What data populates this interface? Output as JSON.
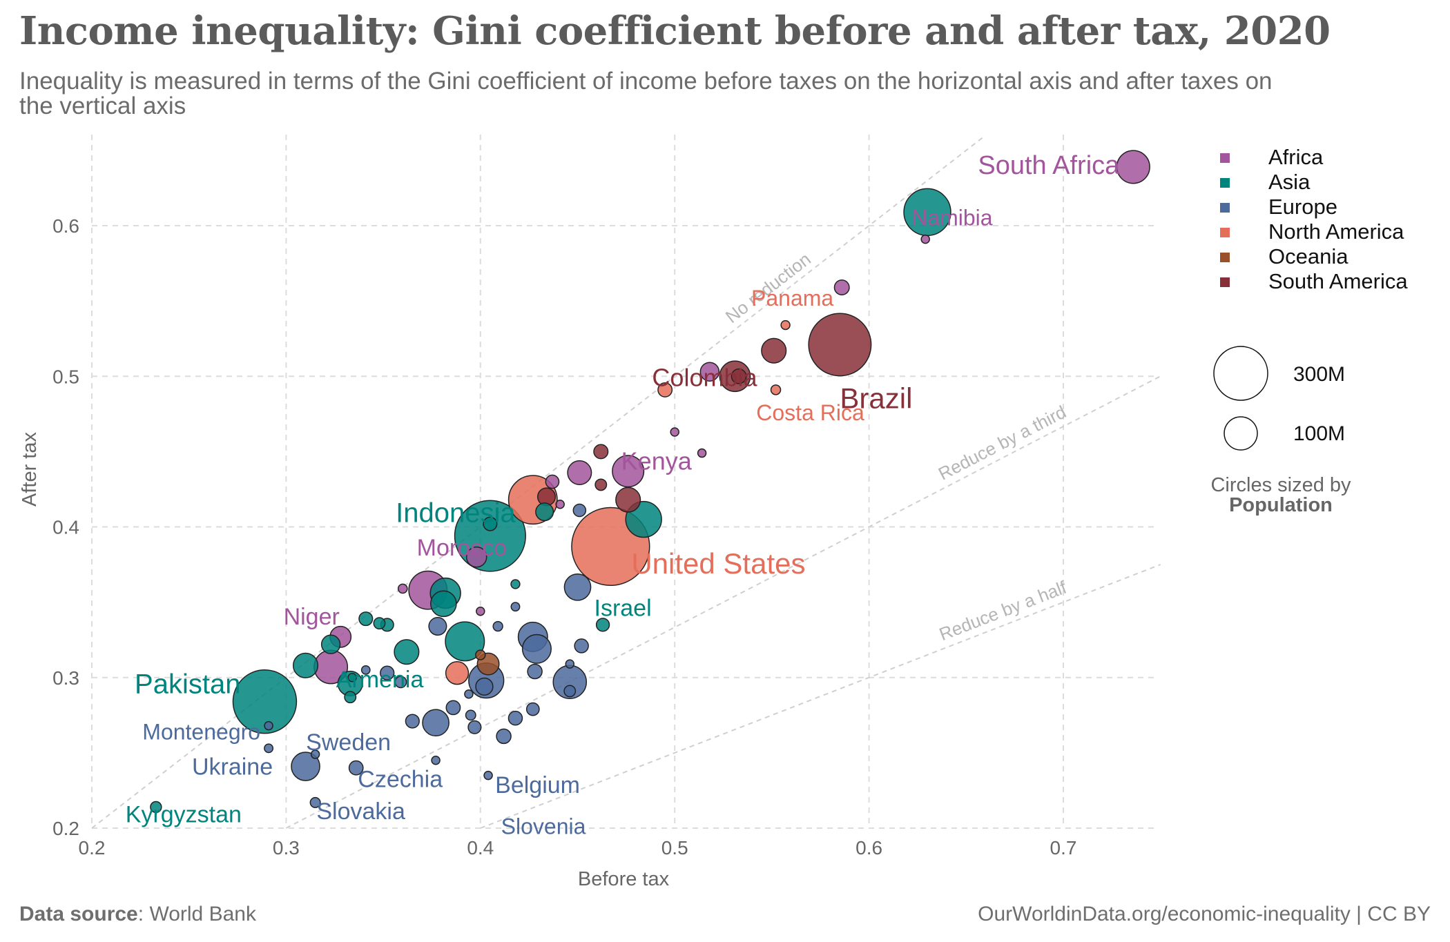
{
  "title": "Income inequality: Gini coefficient before and after tax, 2020",
  "subtitle": "Inequality is measured in terms of the Gini coefficient of income before taxes on the horizontal axis and after taxes on the vertical axis",
  "footer": {
    "source_label": "Data source",
    "source_sep": ":",
    "source_value": "World Bank",
    "credit": "OurWorldinData.org/economic-inequality | CC BY"
  },
  "colors": {
    "Africa": "#a2559c",
    "Asia": "#00847e",
    "Europe": "#4c6a9c",
    "North America": "#e56e5a",
    "Oceania": "#9a5129",
    "South America": "#883039"
  },
  "chart_data": {
    "type": "scatter",
    "xlabel": "Before tax",
    "ylabel": "After tax",
    "xlim": [
      0.2,
      0.75
    ],
    "ylim": [
      0.2,
      0.66
    ],
    "xticks": [
      0.2,
      0.3,
      0.4,
      0.5,
      0.6,
      0.7
    ],
    "yticks": [
      0.2,
      0.3,
      0.4,
      0.5,
      0.6
    ],
    "grid": true,
    "legend_position": "right",
    "legend": [
      "Africa",
      "Asia",
      "Europe",
      "North America",
      "Oceania",
      "South America"
    ],
    "size_legend": {
      "entries": [
        {
          "label": "300M",
          "value": 300
        },
        {
          "label": "100M",
          "value": 100
        }
      ],
      "caption": "Circles sized by",
      "caption_bold": "Population"
    },
    "reference_lines": [
      {
        "label": "No reduction",
        "factor": 1.0
      },
      {
        "label": "Reduce by a third",
        "factor": 0.6667
      },
      {
        "label": "Reduce by a half",
        "factor": 0.5
      }
    ],
    "points": [
      {
        "x": 0.736,
        "y": 0.639,
        "region": "Africa",
        "pop": 59,
        "label": "South Africa"
      },
      {
        "x": 0.63,
        "y": 0.609,
        "region": "Asia",
        "pop": 120
      },
      {
        "x": 0.629,
        "y": 0.591,
        "region": "Africa",
        "pop": 2.5,
        "label": "Namibia"
      },
      {
        "x": 0.586,
        "y": 0.559,
        "region": "Africa",
        "pop": 12
      },
      {
        "x": 0.557,
        "y": 0.534,
        "region": "North America",
        "pop": 4.3,
        "label": "Panama"
      },
      {
        "x": 0.585,
        "y": 0.521,
        "region": "South America",
        "pop": 213,
        "label": "Brazil"
      },
      {
        "x": 0.551,
        "y": 0.517,
        "region": "South America",
        "pop": 33
      },
      {
        "x": 0.518,
        "y": 0.503,
        "region": "Africa",
        "pop": 19
      },
      {
        "x": 0.533,
        "y": 0.5,
        "region": "South America",
        "pop": 11.7
      },
      {
        "x": 0.531,
        "y": 0.5,
        "region": "South America",
        "pop": 51,
        "label": "Colombia"
      },
      {
        "x": 0.552,
        "y": 0.491,
        "region": "North America",
        "pop": 5.1,
        "label": "Costa Rica"
      },
      {
        "x": 0.495,
        "y": 0.491,
        "region": "North America",
        "pop": 10.8
      },
      {
        "x": 0.5,
        "y": 0.463,
        "region": "Africa",
        "pop": 2.3
      },
      {
        "x": 0.514,
        "y": 0.449,
        "region": "Africa",
        "pop": 2.3
      },
      {
        "x": 0.462,
        "y": 0.45,
        "region": "South America",
        "pop": 11
      },
      {
        "x": 0.476,
        "y": 0.437,
        "region": "Africa",
        "pop": 54,
        "label": "Kenya"
      },
      {
        "x": 0.451,
        "y": 0.436,
        "region": "Africa",
        "pop": 31
      },
      {
        "x": 0.437,
        "y": 0.43,
        "region": "Africa",
        "pop": 9.6
      },
      {
        "x": 0.462,
        "y": 0.428,
        "region": "South America",
        "pop": 7
      },
      {
        "x": 0.476,
        "y": 0.418,
        "region": "South America",
        "pop": 33
      },
      {
        "x": 0.427,
        "y": 0.418,
        "region": "North America",
        "pop": 129
      },
      {
        "x": 0.434,
        "y": 0.42,
        "region": "South America",
        "pop": 17
      },
      {
        "x": 0.441,
        "y": 0.415,
        "region": "Africa",
        "pop": 3
      },
      {
        "x": 0.451,
        "y": 0.411,
        "region": "Europe",
        "pop": 8.5
      },
      {
        "x": 0.433,
        "y": 0.41,
        "region": "Asia",
        "pop": 17
      },
      {
        "x": 0.484,
        "y": 0.405,
        "region": "Asia",
        "pop": 70
      },
      {
        "x": 0.405,
        "y": 0.394,
        "region": "Asia",
        "pop": 274,
        "label": "Indonesia"
      },
      {
        "x": 0.405,
        "y": 0.402,
        "region": "Asia",
        "pop": 10
      },
      {
        "x": 0.467,
        "y": 0.387,
        "region": "North America",
        "pop": 331,
        "label": "United States"
      },
      {
        "x": 0.398,
        "y": 0.38,
        "region": "Africa",
        "pop": 22
      },
      {
        "x": 0.373,
        "y": 0.358,
        "region": "Africa",
        "pop": 80,
        "label": "Morocco"
      },
      {
        "x": 0.382,
        "y": 0.356,
        "region": "Asia",
        "pop": 50
      },
      {
        "x": 0.381,
        "y": 0.349,
        "region": "Asia",
        "pop": 36
      },
      {
        "x": 0.45,
        "y": 0.36,
        "region": "Europe",
        "pop": 38
      },
      {
        "x": 0.418,
        "y": 0.362,
        "region": "Asia",
        "pop": 4.3
      },
      {
        "x": 0.36,
        "y": 0.359,
        "region": "Africa",
        "pop": 4.5
      },
      {
        "x": 0.418,
        "y": 0.347,
        "region": "Europe",
        "pop": 4
      },
      {
        "x": 0.4,
        "y": 0.344,
        "region": "Africa",
        "pop": 2.5
      },
      {
        "x": 0.463,
        "y": 0.335,
        "region": "Asia",
        "pop": 9.2,
        "label": "Israel"
      },
      {
        "x": 0.341,
        "y": 0.339,
        "region": "Asia",
        "pop": 10
      },
      {
        "x": 0.348,
        "y": 0.336,
        "region": "Asia",
        "pop": 7
      },
      {
        "x": 0.352,
        "y": 0.335,
        "region": "Asia",
        "pop": 9
      },
      {
        "x": 0.378,
        "y": 0.334,
        "region": "Europe",
        "pop": 17
      },
      {
        "x": 0.409,
        "y": 0.334,
        "region": "Europe",
        "pop": 5
      },
      {
        "x": 0.392,
        "y": 0.324,
        "region": "Asia",
        "pop": 83
      },
      {
        "x": 0.427,
        "y": 0.327,
        "region": "Europe",
        "pop": 47
      },
      {
        "x": 0.328,
        "y": 0.327,
        "region": "Africa",
        "pop": 24,
        "label": "Niger"
      },
      {
        "x": 0.429,
        "y": 0.319,
        "region": "Europe",
        "pop": 45
      },
      {
        "x": 0.452,
        "y": 0.321,
        "region": "Europe",
        "pop": 10.4
      },
      {
        "x": 0.323,
        "y": 0.322,
        "region": "Asia",
        "pop": 18.8
      },
      {
        "x": 0.362,
        "y": 0.317,
        "region": "Asia",
        "pop": 33
      },
      {
        "x": 0.4,
        "y": 0.315,
        "region": "Oceania",
        "pop": 5.1
      },
      {
        "x": 0.404,
        "y": 0.309,
        "region": "Oceania",
        "pop": 25.7
      },
      {
        "x": 0.31,
        "y": 0.308,
        "region": "Asia",
        "pop": 33
      },
      {
        "x": 0.323,
        "y": 0.307,
        "region": "Africa",
        "pop": 61
      },
      {
        "x": 0.446,
        "y": 0.309,
        "region": "Europe",
        "pop": 2.1
      },
      {
        "x": 0.341,
        "y": 0.305,
        "region": "Europe",
        "pop": 3.9
      },
      {
        "x": 0.352,
        "y": 0.303,
        "region": "Europe",
        "pop": 10.2
      },
      {
        "x": 0.428,
        "y": 0.304,
        "region": "Europe",
        "pop": 11.5
      },
      {
        "x": 0.388,
        "y": 0.303,
        "region": "North America",
        "pop": 28
      },
      {
        "x": 0.334,
        "y": 0.3,
        "region": "Asia",
        "pop": 2.96,
        "label": "Armenia"
      },
      {
        "x": 0.333,
        "y": 0.296,
        "region": "Asia",
        "pop": 33
      },
      {
        "x": 0.359,
        "y": 0.297,
        "region": "Europe",
        "pop": 6.9
      },
      {
        "x": 0.403,
        "y": 0.298,
        "region": "Europe",
        "pop": 67
      },
      {
        "x": 0.446,
        "y": 0.297,
        "region": "Europe",
        "pop": 60
      },
      {
        "x": 0.402,
        "y": 0.294,
        "region": "Europe",
        "pop": 16
      },
      {
        "x": 0.446,
        "y": 0.291,
        "region": "Europe",
        "pop": 7
      },
      {
        "x": 0.394,
        "y": 0.289,
        "region": "Europe",
        "pop": 2.1
      },
      {
        "x": 0.333,
        "y": 0.287,
        "region": "Asia",
        "pop": 7
      },
      {
        "x": 0.289,
        "y": 0.284,
        "region": "Asia",
        "pop": 220,
        "label": "Pakistan"
      },
      {
        "x": 0.386,
        "y": 0.28,
        "region": "Europe",
        "pop": 10.7
      },
      {
        "x": 0.427,
        "y": 0.279,
        "region": "Europe",
        "pop": 8.7
      },
      {
        "x": 0.395,
        "y": 0.275,
        "region": "Europe",
        "pop": 5.4
      },
      {
        "x": 0.418,
        "y": 0.273,
        "region": "Europe",
        "pop": 10.4
      },
      {
        "x": 0.365,
        "y": 0.271,
        "region": "Europe",
        "pop": 10.1
      },
      {
        "x": 0.377,
        "y": 0.27,
        "region": "Europe",
        "pop": 38
      },
      {
        "x": 0.397,
        "y": 0.267,
        "region": "Europe",
        "pop": 9
      },
      {
        "x": 0.291,
        "y": 0.268,
        "region": "Europe",
        "pop": 0.62,
        "label": "Montenegro"
      },
      {
        "x": 0.412,
        "y": 0.261,
        "region": "Europe",
        "pop": 11.5,
        "label": "Belgium"
      },
      {
        "x": 0.291,
        "y": 0.253,
        "region": "Europe",
        "pop": 4
      },
      {
        "x": 0.315,
        "y": 0.249,
        "region": "Europe",
        "pop": 2.5,
        "label": "Sweden"
      },
      {
        "x": 0.377,
        "y": 0.245,
        "region": "Europe",
        "pop": 3.5
      },
      {
        "x": 0.31,
        "y": 0.241,
        "region": "Europe",
        "pop": 44,
        "label": "Ukraine"
      },
      {
        "x": 0.336,
        "y": 0.24,
        "region": "Europe",
        "pop": 10.7,
        "label": "Czechia"
      },
      {
        "x": 0.233,
        "y": 0.214,
        "region": "Asia",
        "pop": 6.6,
        "label": "Kyrgyzstan"
      },
      {
        "x": 0.315,
        "y": 0.217,
        "region": "Europe",
        "pop": 5.5,
        "label": "Slovakia"
      },
      {
        "x": 0.404,
        "y": 0.235,
        "region": "Europe",
        "pop": 2.1,
        "label": "Slovenia"
      }
    ]
  }
}
